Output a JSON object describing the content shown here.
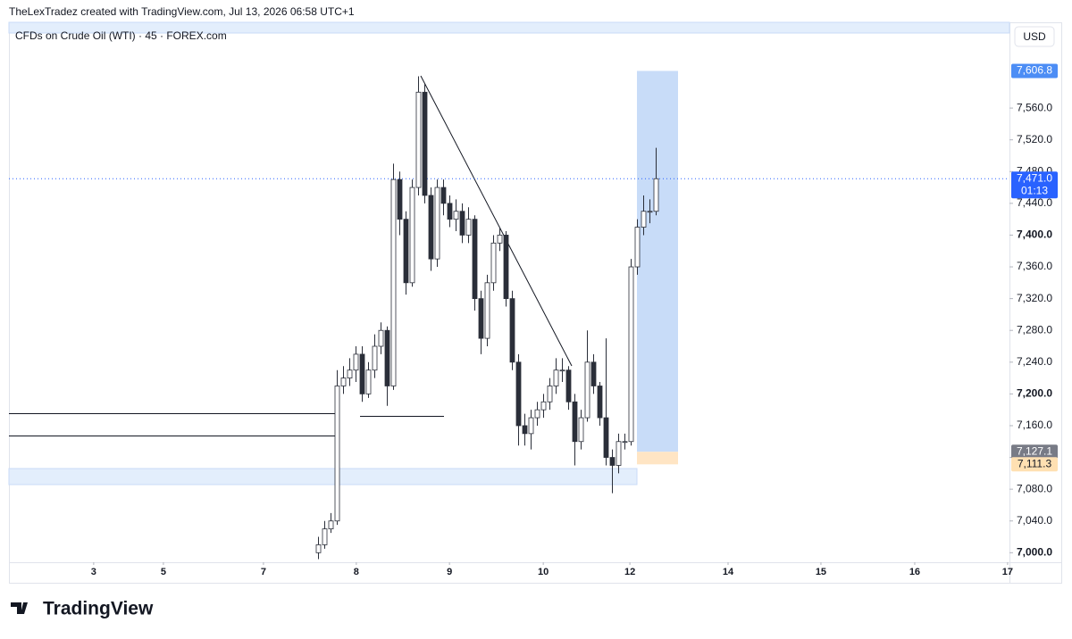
{
  "header": {
    "attribution": "TheLexTradez created with TradingView.com, Jul 13, 2026 06:58 UTC+1"
  },
  "chart_data": {
    "type": "candlestick",
    "title": "CFDs on Crude Oil (WTI) · 45 · FOREX.com",
    "currency": "USD",
    "up_color": "#ffffff",
    "down_color": "#2a2e39",
    "outline_color": "#2a2e39",
    "x": [
      99,
      101,
      103,
      105,
      107,
      109,
      111,
      113,
      115,
      117,
      119,
      121,
      123,
      125,
      127,
      129,
      131,
      133,
      135,
      137,
      139,
      141,
      143,
      145,
      147,
      149,
      151,
      153,
      155,
      157,
      159,
      161,
      163,
      165,
      167,
      169,
      171,
      173,
      175,
      177,
      179,
      181,
      183,
      185,
      187,
      189,
      191,
      193,
      195,
      197,
      199,
      201,
      203,
      205,
      207
    ],
    "open": [
      7000,
      7010,
      7030,
      7040,
      7210,
      7220,
      7230,
      7250,
      7200,
      7230,
      7260,
      7280,
      7210,
      7470,
      7420,
      7340,
      7460,
      7580,
      7450,
      7370,
      7460,
      7440,
      7420,
      7430,
      7400,
      7420,
      7320,
      7270,
      7340,
      7390,
      7400,
      7320,
      7240,
      7160,
      7150,
      7170,
      7180,
      7190,
      7210,
      7230,
      7230,
      7190,
      7140,
      7170,
      7240,
      7210,
      7170,
      7120,
      7110,
      7140,
      7140,
      7360,
      7410,
      7430,
      7430
    ],
    "high": [
      7020,
      7040,
      7050,
      7230,
      7235,
      7245,
      7260,
      7260,
      7240,
      7275,
      7290,
      7285,
      7490,
      7480,
      7430,
      7470,
      7600,
      7590,
      7460,
      7470,
      7470,
      7450,
      7445,
      7440,
      7435,
      7425,
      7330,
      7350,
      7400,
      7410,
      7405,
      7330,
      7250,
      7175,
      7180,
      7190,
      7200,
      7220,
      7245,
      7245,
      7235,
      7200,
      7180,
      7280,
      7250,
      7215,
      7270,
      7130,
      7150,
      7150,
      7370,
      7420,
      7450,
      7445,
      7510
    ],
    "low": [
      6992,
      7005,
      7025,
      7035,
      7200,
      7210,
      7215,
      7190,
      7195,
      7220,
      7250,
      7185,
      7205,
      7400,
      7325,
      7335,
      7450,
      7440,
      7355,
      7360,
      7425,
      7410,
      7405,
      7390,
      7390,
      7305,
      7250,
      7260,
      7330,
      7380,
      7310,
      7230,
      7135,
      7135,
      7130,
      7160,
      7170,
      7180,
      7200,
      7215,
      7180,
      7110,
      7130,
      7165,
      7200,
      7160,
      7110,
      7075,
      7100,
      7130,
      7135,
      7350,
      7400,
      7415,
      7425
    ],
    "close": [
      7010,
      7030,
      7040,
      7210,
      7220,
      7230,
      7250,
      7200,
      7230,
      7260,
      7280,
      7210,
      7470,
      7420,
      7340,
      7460,
      7580,
      7450,
      7370,
      7460,
      7440,
      7420,
      7430,
      7400,
      7420,
      7320,
      7270,
      7340,
      7390,
      7400,
      7320,
      7240,
      7160,
      7150,
      7170,
      7180,
      7190,
      7210,
      7230,
      7230,
      7190,
      7140,
      7170,
      7240,
      7210,
      7170,
      7120,
      7110,
      7140,
      7140,
      7360,
      7410,
      7430,
      7430,
      7471
    ],
    "xlim": [
      0,
      320
    ],
    "xticks": [
      {
        "value": 27.1,
        "label": "3"
      },
      {
        "value": 49.4,
        "label": "5"
      },
      {
        "value": 81.4,
        "label": "7"
      },
      {
        "value": 111.1,
        "label": "8"
      },
      {
        "value": 140.9,
        "label": "9"
      },
      {
        "value": 170.9,
        "label": "10"
      },
      {
        "value": 198.6,
        "label": "12"
      },
      {
        "value": 230,
        "label": "14"
      },
      {
        "value": 259.7,
        "label": "15"
      },
      {
        "value": 289.7,
        "label": "16"
      },
      {
        "value": 319.4,
        "label": "17"
      }
    ],
    "ylim": [
      6988,
      7668
    ],
    "yticks": [
      {
        "value": 7000,
        "label": "7,000.0"
      },
      {
        "value": 7040,
        "label": "7,040.0"
      },
      {
        "value": 7080,
        "label": "7,080.0"
      },
      {
        "value": 7120,
        "label": "7,120.0"
      },
      {
        "value": 7160,
        "label": "7,160.0"
      },
      {
        "value": 7200,
        "label": "7,200.0"
      },
      {
        "value": 7240,
        "label": "7,240.0"
      },
      {
        "value": 7280,
        "label": "7,280.0"
      },
      {
        "value": 7320,
        "label": "7,320.0"
      },
      {
        "value": 7360,
        "label": "7,360.0"
      },
      {
        "value": 7400,
        "label": "7,400.0"
      },
      {
        "value": 7440,
        "label": "7,440.0"
      },
      {
        "value": 7480,
        "label": "7,480.0"
      },
      {
        "value": 7520,
        "label": "7,520.0"
      },
      {
        "value": 7560,
        "label": "7,560.0"
      }
    ],
    "price_labels": [
      {
        "value": 7606.8,
        "label": "7,606.8",
        "color": "#4c8df5",
        "text_color": "#ffffff"
      },
      {
        "value": 7471.0,
        "label": "7,471.0",
        "color": "#2962ff",
        "text_color": "#ffffff",
        "countdown": "01:13"
      },
      {
        "value": 7127.1,
        "label": "7,127.1",
        "color": "#787b86",
        "text_color": "#ffffff"
      },
      {
        "value": 7111.3,
        "label": "7,111.3",
        "color": "#ffe0b2",
        "text_color": "#131722"
      }
    ]
  },
  "footer": {
    "brand": "TradingView"
  }
}
